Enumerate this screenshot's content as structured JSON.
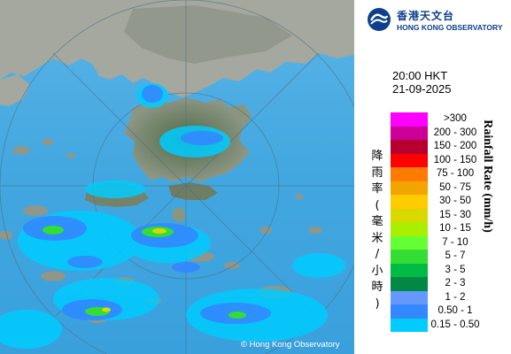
{
  "time": "20:00 HKT",
  "date": "21-09-2025",
  "logo": {
    "zh": "香港天文台",
    "en": "HONG KONG OBSERVATORY",
    "icon": "hko-logo-icon"
  },
  "legend": {
    "title_en": "Rainfall Rate (mm/h)",
    "title_zh": [
      "降",
      "雨",
      "率",
      "(",
      "毫",
      "米",
      "/",
      "小",
      "時",
      ")"
    ],
    "items": [
      {
        "label": ">300",
        "color": "#ff00ff"
      },
      {
        "label": "200 - 300",
        "color": "#cc0099"
      },
      {
        "label": "150 - 200",
        "color": "#b8002e"
      },
      {
        "label": "100 - 150",
        "color": "#ff0000"
      },
      {
        "label": "75 - 100",
        "color": "#ff7a00"
      },
      {
        "label": "50 - 75",
        "color": "#f2a400"
      },
      {
        "label": "30 - 50",
        "color": "#ffcc00"
      },
      {
        "label": "15 - 30",
        "color": "#d9d900"
      },
      {
        "label": "10 - 15",
        "color": "#aaee00"
      },
      {
        "label": "7 - 10",
        "color": "#66ff33"
      },
      {
        "label": "5 - 7",
        "color": "#33dd33"
      },
      {
        "label": "3 - 5",
        "color": "#00bb44"
      },
      {
        "label": "2 - 3",
        "color": "#008844"
      },
      {
        "label": "1 - 2",
        "color": "#6699ff"
      },
      {
        "label": "0.50 - 1",
        "color": "#3388ff"
      },
      {
        "label": "0.15 - 0.50",
        "color": "#00ccff"
      }
    ]
  },
  "copyright": "© Hong Kong Observatory",
  "colors": {
    "sea": "#40a6e0",
    "land": "#9ea39a",
    "terrain": "#6a7a5e",
    "range_ring": "#4d6f86",
    "rain_light": "#00ccff",
    "rain_moderate": "#3388ff",
    "rain_heavy": "#33dd33",
    "rain_intense": "#d9d900"
  }
}
